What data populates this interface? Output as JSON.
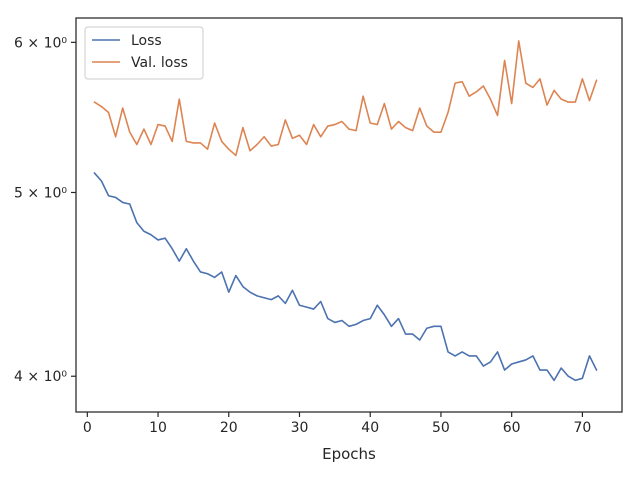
{
  "chart_data": {
    "type": "line",
    "title": "",
    "xlabel": "Epochs",
    "ylabel": "",
    "yscale": "log",
    "xlim": [
      -1.6,
      75.6
    ],
    "ylim": [
      3.83,
      6.18
    ],
    "xticks": [
      0,
      10,
      20,
      30,
      40,
      50,
      60,
      70
    ],
    "xtick_labels": [
      "0",
      "10",
      "20",
      "30",
      "40",
      "50",
      "60",
      "70"
    ],
    "yticks": [
      4,
      5,
      6
    ],
    "ytick_labels": [
      "4 × 10⁰",
      "5 × 10⁰",
      "6 × 10⁰"
    ],
    "grid": false,
    "legend_position": "upper-left",
    "series": [
      {
        "name": "Loss",
        "color": "#4c72b0",
        "x": [
          1,
          2,
          3,
          4,
          5,
          6,
          7,
          8,
          9,
          10,
          11,
          12,
          13,
          14,
          15,
          16,
          17,
          18,
          19,
          20,
          21,
          22,
          23,
          24,
          25,
          26,
          27,
          28,
          29,
          30,
          31,
          32,
          33,
          34,
          35,
          36,
          37,
          38,
          39,
          40,
          41,
          42,
          43,
          44,
          45,
          46,
          47,
          48,
          49,
          50,
          51,
          52,
          53,
          54,
          55,
          56,
          57,
          58,
          59,
          60,
          61,
          62,
          63,
          64,
          65,
          66,
          67,
          68,
          69,
          70,
          71,
          72
        ],
        "values": [
          5.12,
          5.07,
          4.98,
          4.97,
          4.94,
          4.93,
          4.82,
          4.77,
          4.75,
          4.72,
          4.73,
          4.67,
          4.6,
          4.67,
          4.6,
          4.54,
          4.53,
          4.51,
          4.54,
          4.43,
          4.52,
          4.46,
          4.43,
          4.41,
          4.4,
          4.39,
          4.41,
          4.37,
          4.44,
          4.36,
          4.35,
          4.34,
          4.38,
          4.29,
          4.27,
          4.28,
          4.25,
          4.26,
          4.28,
          4.29,
          4.36,
          4.31,
          4.25,
          4.29,
          4.21,
          4.21,
          4.18,
          4.24,
          4.25,
          4.25,
          4.12,
          4.1,
          4.12,
          4.1,
          4.1,
          4.05,
          4.07,
          4.12,
          4.03,
          4.06,
          4.07,
          4.08,
          4.1,
          4.03,
          4.03,
          3.98,
          4.04,
          4.0,
          3.98,
          3.99,
          4.1,
          4.03
        ]
      },
      {
        "name": "Val. loss",
        "color": "#dd8452",
        "x": [
          1,
          2,
          3,
          4,
          5,
          6,
          7,
          8,
          9,
          10,
          11,
          12,
          13,
          14,
          15,
          16,
          17,
          18,
          19,
          20,
          21,
          22,
          23,
          24,
          25,
          26,
          27,
          28,
          29,
          30,
          31,
          32,
          33,
          34,
          35,
          36,
          37,
          38,
          39,
          40,
          41,
          42,
          43,
          44,
          45,
          46,
          47,
          48,
          49,
          50,
          51,
          52,
          53,
          54,
          55,
          56,
          57,
          58,
          59,
          60,
          61,
          62,
          63,
          64,
          65,
          66,
          67,
          68,
          69,
          70,
          71,
          72
        ],
        "values": [
          5.58,
          5.55,
          5.51,
          5.35,
          5.54,
          5.38,
          5.3,
          5.4,
          5.3,
          5.43,
          5.42,
          5.32,
          5.6,
          5.32,
          5.31,
          5.31,
          5.27,
          5.44,
          5.32,
          5.27,
          5.23,
          5.41,
          5.26,
          5.3,
          5.35,
          5.29,
          5.3,
          5.46,
          5.34,
          5.36,
          5.3,
          5.43,
          5.35,
          5.42,
          5.43,
          5.45,
          5.4,
          5.39,
          5.62,
          5.44,
          5.43,
          5.57,
          5.4,
          5.45,
          5.41,
          5.39,
          5.54,
          5.42,
          5.38,
          5.38,
          5.51,
          5.71,
          5.72,
          5.62,
          5.65,
          5.69,
          5.6,
          5.49,
          5.87,
          5.57,
          6.01,
          5.71,
          5.68,
          5.74,
          5.56,
          5.66,
          5.6,
          5.58,
          5.58,
          5.74,
          5.59,
          5.73
        ]
      }
    ]
  }
}
